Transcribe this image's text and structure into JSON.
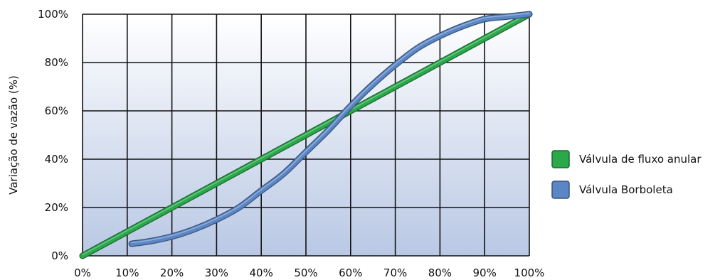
{
  "chart_data": {
    "type": "line",
    "xlabel": "",
    "ylabel": "Variação de vazão (%)",
    "xlim": [
      0,
      100
    ],
    "ylim": [
      0,
      100
    ],
    "x_ticks": [
      "0%",
      "10%",
      "20%",
      "30%",
      "40%",
      "50%",
      "60%",
      "70%",
      "80%",
      "90%",
      "100%"
    ],
    "y_ticks": [
      "0%",
      "20%",
      "40%",
      "60%",
      "80%",
      "100%"
    ],
    "grid": true,
    "legend_position": "right",
    "series": [
      {
        "name": "Válvula de fluxo anular",
        "color": "#2aa84a",
        "x": [
          0,
          10,
          20,
          30,
          40,
          50,
          60,
          70,
          80,
          90,
          100
        ],
        "y": [
          0,
          10,
          20,
          30,
          40,
          50,
          60,
          70,
          80,
          90,
          100
        ]
      },
      {
        "name": "Válvula Borboleta",
        "color": "#5b86c5",
        "x": [
          11,
          15,
          20,
          25,
          30,
          35,
          40,
          45,
          50,
          55,
          60,
          65,
          70,
          75,
          80,
          85,
          90,
          95,
          100
        ],
        "y": [
          5,
          6,
          8,
          11,
          15,
          20,
          27,
          34,
          43,
          52,
          62,
          71,
          79,
          86,
          91,
          95,
          98,
          99,
          100
        ]
      }
    ]
  }
}
